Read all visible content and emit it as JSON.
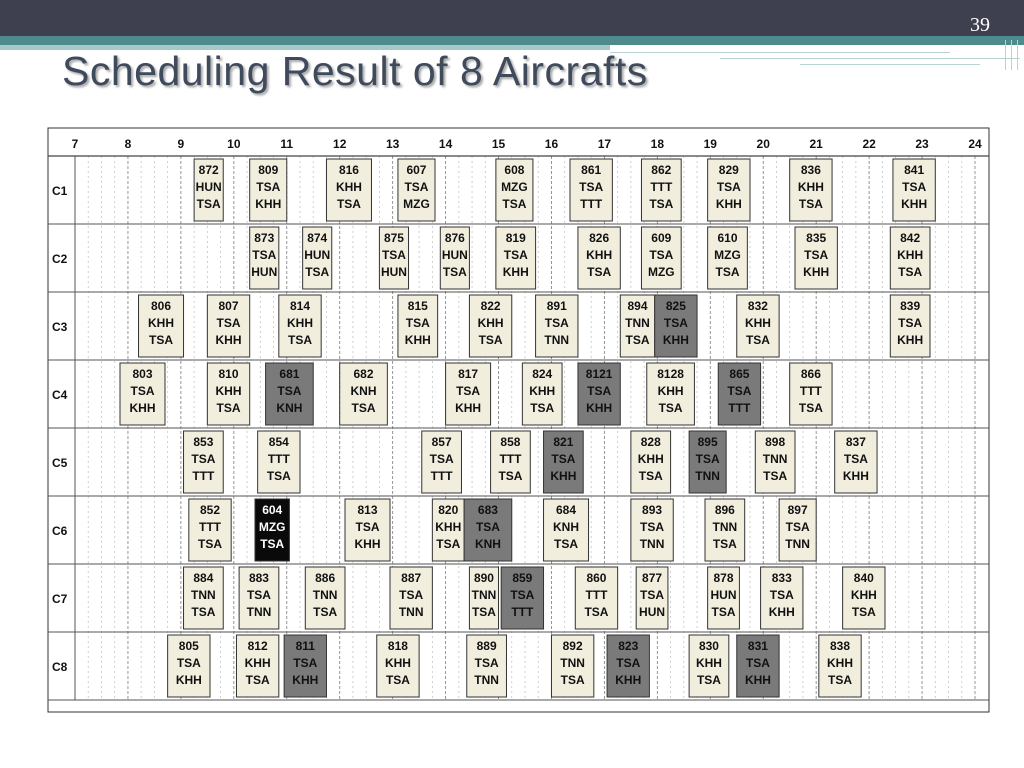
{
  "slide": {
    "number": "39",
    "title": "Scheduling Result of 8 Aircrafts"
  },
  "chart_data": {
    "type": "table",
    "x_range": [
      7,
      24
    ],
    "hour_labels": [
      "7",
      "8",
      "9",
      "10",
      "11",
      "12",
      "13",
      "14",
      "15",
      "16",
      "17",
      "18",
      "19",
      "20",
      "21",
      "22",
      "23",
      "24"
    ],
    "rows": [
      "C1",
      "C2",
      "C3",
      "C4",
      "C5",
      "C6",
      "C7",
      "C8"
    ],
    "shade_colors": {
      "light": "#f2eede",
      "gray": "#7a7a7a",
      "black": "#0a0a0a"
    },
    "flights": [
      {
        "row": "C1",
        "start": 9.25,
        "end": 9.8,
        "num": "872",
        "from": "HUN",
        "to": "TSA",
        "shade": "light"
      },
      {
        "row": "C1",
        "start": 10.3,
        "end": 11.0,
        "num": "809",
        "from": "TSA",
        "to": "KHH",
        "shade": "light"
      },
      {
        "row": "C1",
        "start": 11.75,
        "end": 12.6,
        "num": "816",
        "from": "KHH",
        "to": "TSA",
        "shade": "light"
      },
      {
        "row": "C1",
        "start": 13.1,
        "end": 13.8,
        "num": "607",
        "from": "TSA",
        "to": "MZG",
        "shade": "light"
      },
      {
        "row": "C1",
        "start": 14.95,
        "end": 15.65,
        "num": "608",
        "from": "MZG",
        "to": "TSA",
        "shade": "light"
      },
      {
        "row": "C1",
        "start": 16.35,
        "end": 17.15,
        "num": "861",
        "from": "TSA",
        "to": "TTT",
        "shade": "light"
      },
      {
        "row": "C1",
        "start": 17.7,
        "end": 18.45,
        "num": "862",
        "from": "TTT",
        "to": "TSA",
        "shade": "light"
      },
      {
        "row": "C1",
        "start": 18.95,
        "end": 19.75,
        "num": "829",
        "from": "TSA",
        "to": "KHH",
        "shade": "light"
      },
      {
        "row": "C1",
        "start": 20.5,
        "end": 21.3,
        "num": "836",
        "from": "KHH",
        "to": "TSA",
        "shade": "light"
      },
      {
        "row": "C1",
        "start": 22.45,
        "end": 23.25,
        "num": "841",
        "from": "TSA",
        "to": "KHH",
        "shade": "light"
      },
      {
        "row": "C2",
        "start": 10.3,
        "end": 10.85,
        "num": "873",
        "from": "TSA",
        "to": "HUN",
        "shade": "light"
      },
      {
        "row": "C2",
        "start": 11.3,
        "end": 11.85,
        "num": "874",
        "from": "HUN",
        "to": "TSA",
        "shade": "light"
      },
      {
        "row": "C2",
        "start": 12.75,
        "end": 13.3,
        "num": "875",
        "from": "TSA",
        "to": "HUN",
        "shade": "light"
      },
      {
        "row": "C2",
        "start": 13.9,
        "end": 14.45,
        "num": "876",
        "from": "HUN",
        "to": "TSA",
        "shade": "light"
      },
      {
        "row": "C2",
        "start": 14.95,
        "end": 15.7,
        "num": "819",
        "from": "TSA",
        "to": "KHH",
        "shade": "light"
      },
      {
        "row": "C2",
        "start": 16.5,
        "end": 17.3,
        "num": "826",
        "from": "KHH",
        "to": "TSA",
        "shade": "light"
      },
      {
        "row": "C2",
        "start": 17.7,
        "end": 18.45,
        "num": "609",
        "from": "TSA",
        "to": "MZG",
        "shade": "light"
      },
      {
        "row": "C2",
        "start": 18.95,
        "end": 19.7,
        "num": "610",
        "from": "MZG",
        "to": "TSA",
        "shade": "light"
      },
      {
        "row": "C2",
        "start": 20.6,
        "end": 21.4,
        "num": "835",
        "from": "TSA",
        "to": "KHH",
        "shade": "light"
      },
      {
        "row": "C2",
        "start": 22.4,
        "end": 23.15,
        "num": "842",
        "from": "KHH",
        "to": "TSA",
        "shade": "light"
      },
      {
        "row": "C3",
        "start": 8.2,
        "end": 9.05,
        "num": "806",
        "from": "KHH",
        "to": "TSA",
        "shade": "light"
      },
      {
        "row": "C3",
        "start": 9.5,
        "end": 10.3,
        "num": "807",
        "from": "TSA",
        "to": "KHH",
        "shade": "light"
      },
      {
        "row": "C3",
        "start": 10.85,
        "end": 11.65,
        "num": "814",
        "from": "KHH",
        "to": "TSA",
        "shade": "light"
      },
      {
        "row": "C3",
        "start": 13.1,
        "end": 13.85,
        "num": "815",
        "from": "TSA",
        "to": "KHH",
        "shade": "light"
      },
      {
        "row": "C3",
        "start": 14.45,
        "end": 15.25,
        "num": "822",
        "from": "KHH",
        "to": "TSA",
        "shade": "light"
      },
      {
        "row": "C3",
        "start": 15.7,
        "end": 16.5,
        "num": "891",
        "from": "TSA",
        "to": "TNN",
        "shade": "light"
      },
      {
        "row": "C3",
        "start": 17.3,
        "end": 17.95,
        "num": "894",
        "from": "TNN",
        "to": "TSA",
        "shade": "light"
      },
      {
        "row": "C3",
        "start": 17.95,
        "end": 18.75,
        "num": "825",
        "from": "TSA",
        "to": "KHH",
        "shade": "gray"
      },
      {
        "row": "C3",
        "start": 19.5,
        "end": 20.3,
        "num": "832",
        "from": "KHH",
        "to": "TSA",
        "shade": "light"
      },
      {
        "row": "C3",
        "start": 22.4,
        "end": 23.15,
        "num": "839",
        "from": "TSA",
        "to": "KHH",
        "shade": "light"
      },
      {
        "row": "C4",
        "start": 7.85,
        "end": 8.7,
        "num": "803",
        "from": "TSA",
        "to": "KHH",
        "shade": "light"
      },
      {
        "row": "C4",
        "start": 9.5,
        "end": 10.3,
        "num": "810",
        "from": "KHH",
        "to": "TSA",
        "shade": "light"
      },
      {
        "row": "C4",
        "start": 10.6,
        "end": 11.5,
        "num": "681",
        "from": "TSA",
        "to": "KNH",
        "shade": "gray"
      },
      {
        "row": "C4",
        "start": 12.0,
        "end": 12.9,
        "num": "682",
        "from": "KNH",
        "to": "TSA",
        "shade": "light"
      },
      {
        "row": "C4",
        "start": 14.0,
        "end": 14.85,
        "num": "817",
        "from": "TSA",
        "to": "KHH",
        "shade": "light"
      },
      {
        "row": "C4",
        "start": 15.45,
        "end": 16.2,
        "num": "824",
        "from": "KHH",
        "to": "TSA",
        "shade": "light"
      },
      {
        "row": "C4",
        "start": 16.5,
        "end": 17.3,
        "num": "8121",
        "from": "TSA",
        "to": "KHH",
        "shade": "gray"
      },
      {
        "row": "C4",
        "start": 17.8,
        "end": 18.7,
        "num": "8128",
        "from": "KHH",
        "to": "TSA",
        "shade": "light"
      },
      {
        "row": "C4",
        "start": 19.15,
        "end": 19.95,
        "num": "865",
        "from": "TSA",
        "to": "TTT",
        "shade": "gray"
      },
      {
        "row": "C4",
        "start": 20.5,
        "end": 21.3,
        "num": "866",
        "from": "TTT",
        "to": "TSA",
        "shade": "light"
      },
      {
        "row": "C5",
        "start": 9.05,
        "end": 9.8,
        "num": "853",
        "from": "TSA",
        "to": "TTT",
        "shade": "light"
      },
      {
        "row": "C5",
        "start": 10.45,
        "end": 11.25,
        "num": "854",
        "from": "TTT",
        "to": "TSA",
        "shade": "light"
      },
      {
        "row": "C5",
        "start": 13.55,
        "end": 14.3,
        "num": "857",
        "from": "TSA",
        "to": "TTT",
        "shade": "light"
      },
      {
        "row": "C5",
        "start": 14.85,
        "end": 15.6,
        "num": "858",
        "from": "TTT",
        "to": "TSA",
        "shade": "light"
      },
      {
        "row": "C5",
        "start": 15.85,
        "end": 16.6,
        "num": "821",
        "from": "TSA",
        "to": "KHH",
        "shade": "gray"
      },
      {
        "row": "C5",
        "start": 17.5,
        "end": 18.25,
        "num": "828",
        "from": "KHH",
        "to": "TSA",
        "shade": "light"
      },
      {
        "row": "C5",
        "start": 18.6,
        "end": 19.3,
        "num": "895",
        "from": "TSA",
        "to": "TNN",
        "shade": "gray"
      },
      {
        "row": "C5",
        "start": 19.85,
        "end": 20.6,
        "num": "898",
        "from": "TNN",
        "to": "TSA",
        "shade": "light"
      },
      {
        "row": "C5",
        "start": 21.35,
        "end": 22.15,
        "num": "837",
        "from": "TSA",
        "to": "KHH",
        "shade": "light"
      },
      {
        "row": "C6",
        "start": 9.15,
        "end": 9.95,
        "num": "852",
        "from": "TTT",
        "to": "TSA",
        "shade": "light"
      },
      {
        "row": "C6",
        "start": 10.4,
        "end": 11.05,
        "num": "604",
        "from": "MZG",
        "to": "TSA",
        "shade": "black"
      },
      {
        "row": "C6",
        "start": 12.1,
        "end": 12.95,
        "num": "813",
        "from": "TSA",
        "to": "KHH",
        "shade": "light"
      },
      {
        "row": "C6",
        "start": 13.75,
        "end": 14.35,
        "num": "820",
        "from": "KHH",
        "to": "TSA",
        "shade": "light"
      },
      {
        "row": "C6",
        "start": 14.35,
        "end": 15.25,
        "num": "683",
        "from": "TSA",
        "to": "KNH",
        "shade": "gray"
      },
      {
        "row": "C6",
        "start": 15.85,
        "end": 16.7,
        "num": "684",
        "from": "KNH",
        "to": "TSA",
        "shade": "light"
      },
      {
        "row": "C6",
        "start": 17.5,
        "end": 18.3,
        "num": "893",
        "from": "TSA",
        "to": "TNN",
        "shade": "light"
      },
      {
        "row": "C6",
        "start": 18.9,
        "end": 19.65,
        "num": "896",
        "from": "TNN",
        "to": "TSA",
        "shade": "light"
      },
      {
        "row": "C6",
        "start": 20.3,
        "end": 21.0,
        "num": "897",
        "from": "TSA",
        "to": "TNN",
        "shade": "light"
      },
      {
        "row": "C7",
        "start": 9.05,
        "end": 9.8,
        "num": "884",
        "from": "TNN",
        "to": "TSA",
        "shade": "light"
      },
      {
        "row": "C7",
        "start": 10.1,
        "end": 10.85,
        "num": "883",
        "from": "TSA",
        "to": "TNN",
        "shade": "light"
      },
      {
        "row": "C7",
        "start": 11.35,
        "end": 12.1,
        "num": "886",
        "from": "TNN",
        "to": "TSA",
        "shade": "light"
      },
      {
        "row": "C7",
        "start": 12.95,
        "end": 13.75,
        "num": "887",
        "from": "TSA",
        "to": "TNN",
        "shade": "light"
      },
      {
        "row": "C7",
        "start": 14.45,
        "end": 15.0,
        "num": "890",
        "from": "TNN",
        "to": "TSA",
        "shade": "light"
      },
      {
        "row": "C7",
        "start": 15.05,
        "end": 15.85,
        "num": "859",
        "from": "TSA",
        "to": "TTT",
        "shade": "gray"
      },
      {
        "row": "C7",
        "start": 16.45,
        "end": 17.25,
        "num": "860",
        "from": "TTT",
        "to": "TSA",
        "shade": "light"
      },
      {
        "row": "C7",
        "start": 17.6,
        "end": 18.2,
        "num": "877",
        "from": "TSA",
        "to": "HUN",
        "shade": "light"
      },
      {
        "row": "C7",
        "start": 18.95,
        "end": 19.55,
        "num": "878",
        "from": "HUN",
        "to": "TSA",
        "shade": "light"
      },
      {
        "row": "C7",
        "start": 19.95,
        "end": 20.75,
        "num": "833",
        "from": "TSA",
        "to": "KHH",
        "shade": "light"
      },
      {
        "row": "C7",
        "start": 21.5,
        "end": 22.3,
        "num": "840",
        "from": "KHH",
        "to": "TSA",
        "shade": "light"
      },
      {
        "row": "C8",
        "start": 8.75,
        "end": 9.55,
        "num": "805",
        "from": "TSA",
        "to": "KHH",
        "shade": "light"
      },
      {
        "row": "C8",
        "start": 10.05,
        "end": 10.85,
        "num": "812",
        "from": "KHH",
        "to": "TSA",
        "shade": "light"
      },
      {
        "row": "C8",
        "start": 10.95,
        "end": 11.75,
        "num": "811",
        "from": "TSA",
        "to": "KHH",
        "shade": "gray"
      },
      {
        "row": "C8",
        "start": 12.7,
        "end": 13.5,
        "num": "818",
        "from": "KHH",
        "to": "TSA",
        "shade": "light"
      },
      {
        "row": "C8",
        "start": 14.4,
        "end": 15.15,
        "num": "889",
        "from": "TSA",
        "to": "TNN",
        "shade": "light"
      },
      {
        "row": "C8",
        "start": 16.0,
        "end": 16.8,
        "num": "892",
        "from": "TNN",
        "to": "TSA",
        "shade": "light"
      },
      {
        "row": "C8",
        "start": 17.05,
        "end": 17.85,
        "num": "823",
        "from": "TSA",
        "to": "KHH",
        "shade": "gray"
      },
      {
        "row": "C8",
        "start": 18.6,
        "end": 19.35,
        "num": "830",
        "from": "KHH",
        "to": "TSA",
        "shade": "light"
      },
      {
        "row": "C8",
        "start": 19.5,
        "end": 20.3,
        "num": "831",
        "from": "TSA",
        "to": "KHH",
        "shade": "gray"
      },
      {
        "row": "C8",
        "start": 21.05,
        "end": 21.85,
        "num": "838",
        "from": "KHH",
        "to": "TSA",
        "shade": "light"
      }
    ]
  }
}
